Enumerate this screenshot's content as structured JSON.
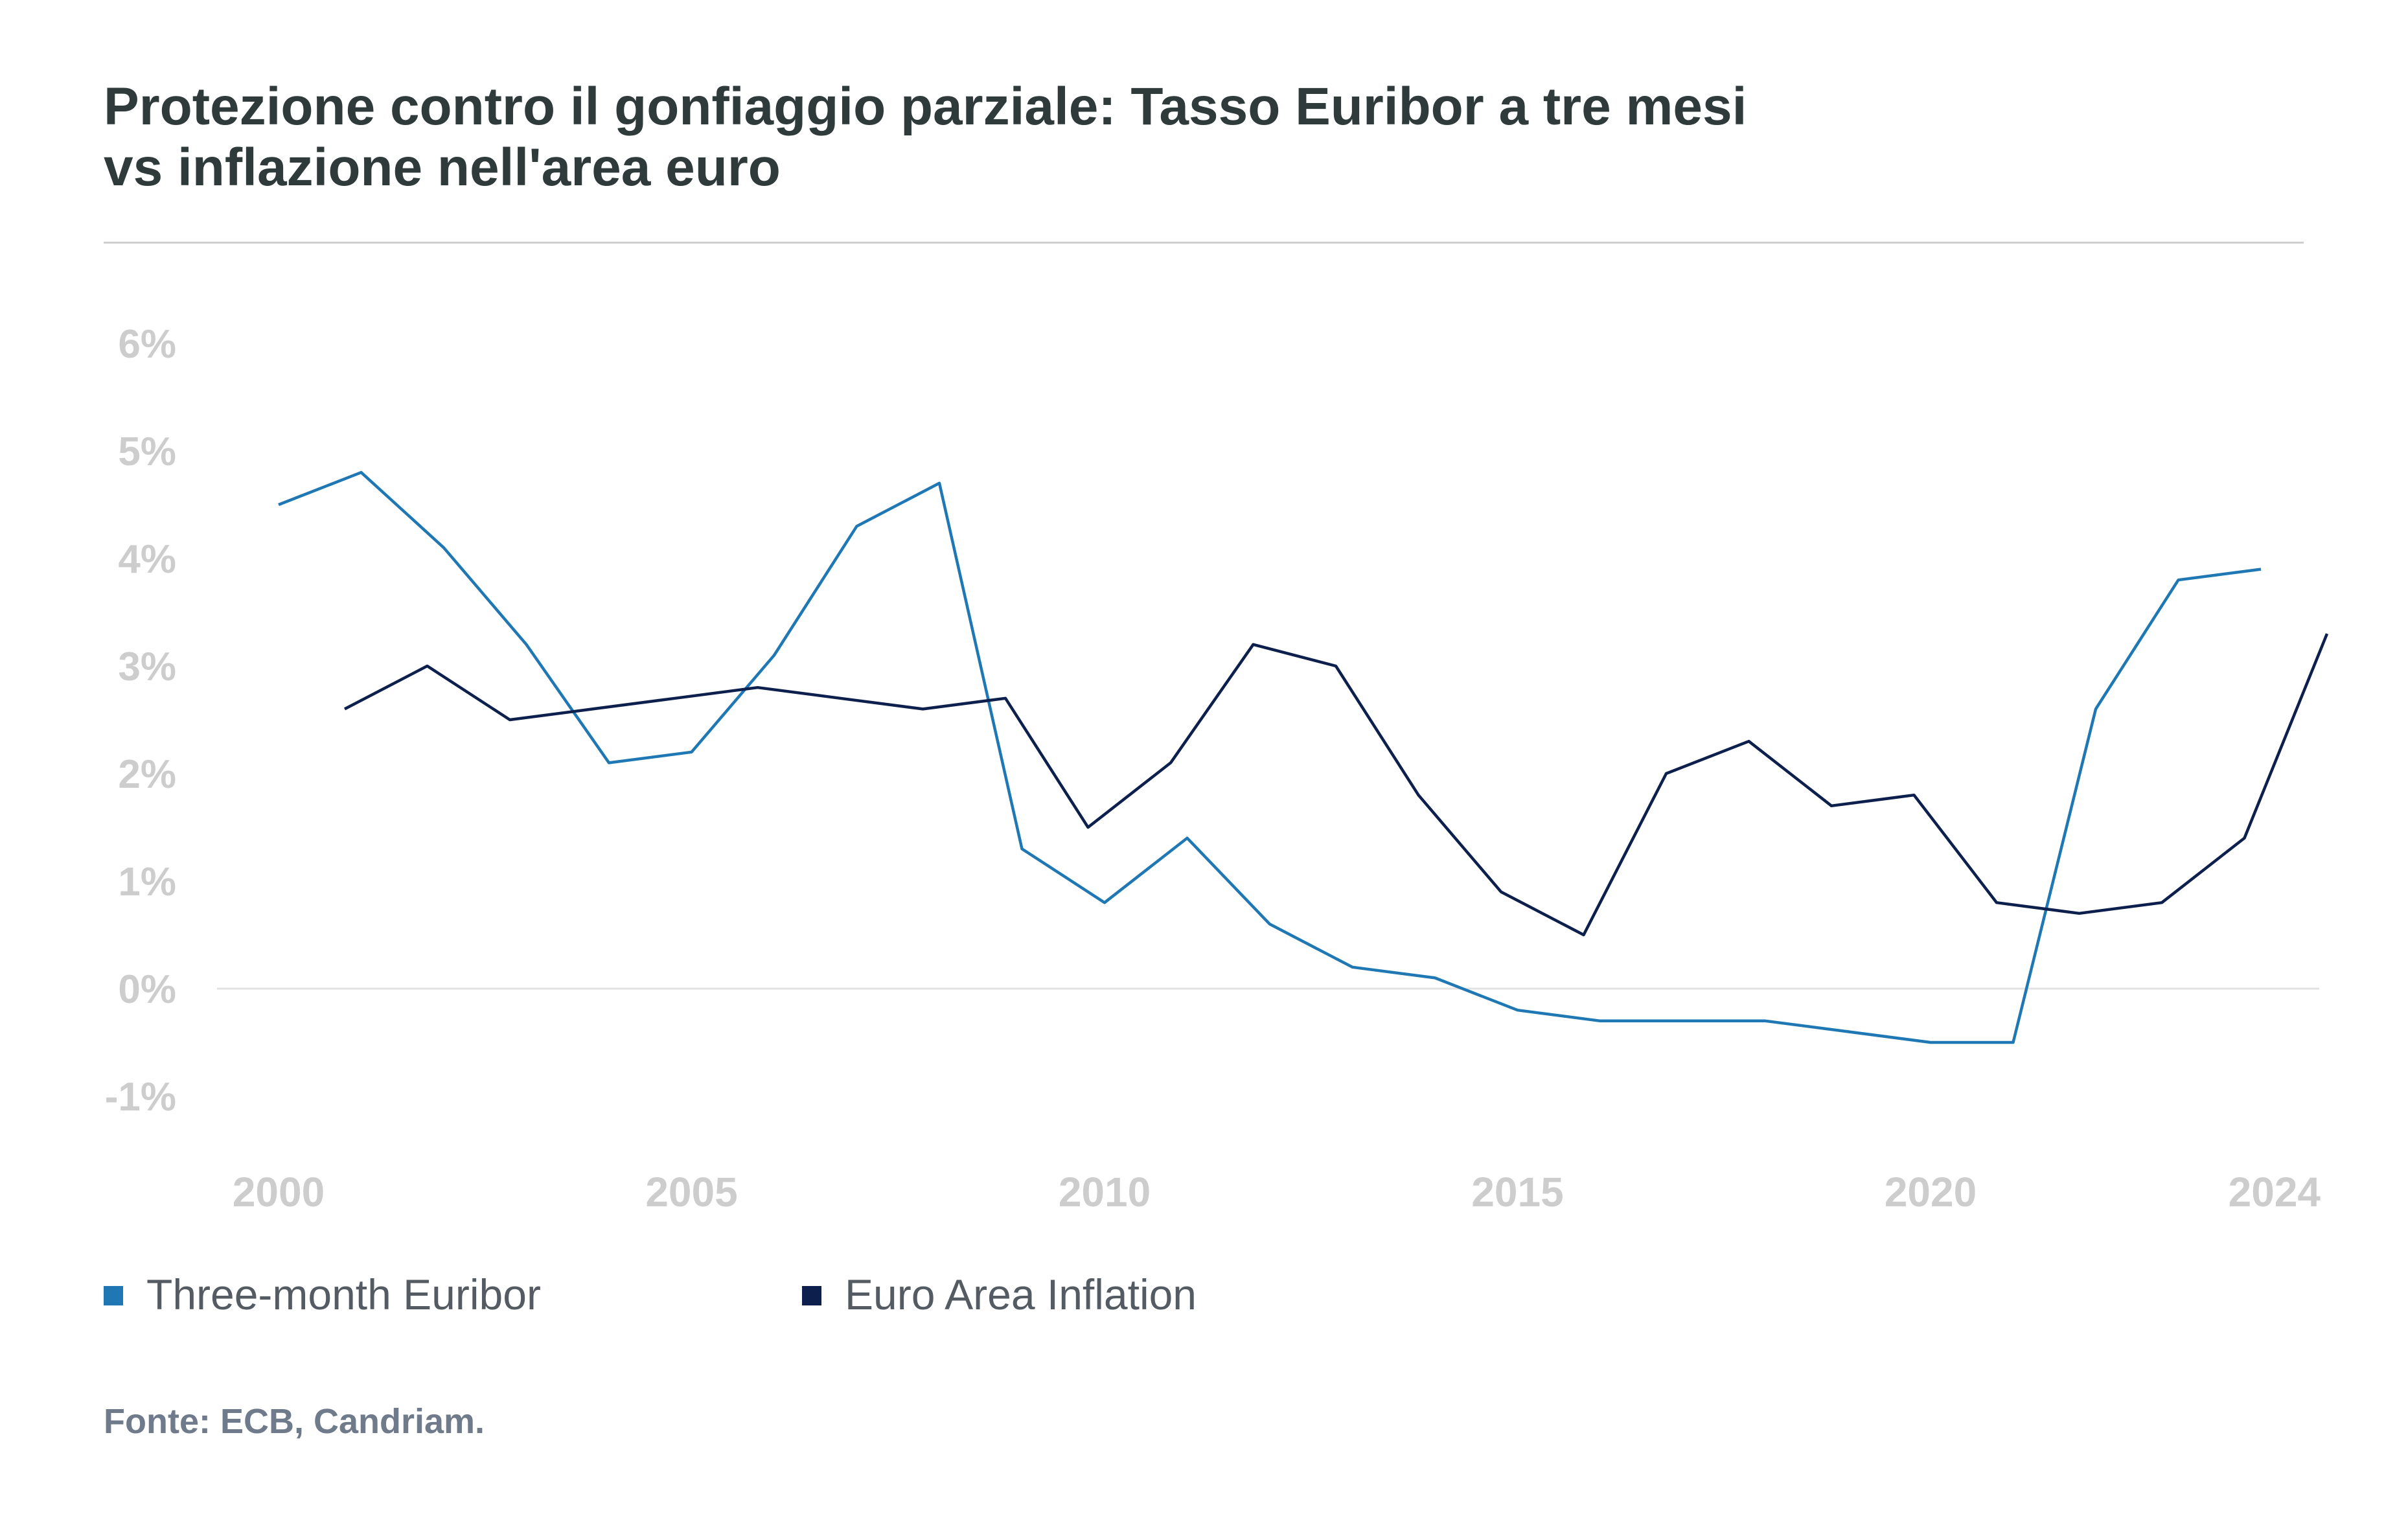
{
  "title_lines": [
    "Protezione contro il gonfiaggio parziale: Tasso Euribor a tre mesi",
    "vs inflazione nell'area euro"
  ],
  "source": "Fonte: ECB, Candriam.",
  "chart_data": {
    "type": "line",
    "title": "Protezione contro il gonfiaggio parziale: Tasso Euribor a tre mesi vs inflazione nell'area euro",
    "xlabel": "",
    "ylabel": "",
    "xlim": [
      2000,
      2024
    ],
    "ylim": [
      -1,
      6
    ],
    "x_ticks": [
      2000,
      2005,
      2010,
      2015,
      2020,
      2024
    ],
    "x_tick_labels": [
      "2000",
      "2005",
      "2010",
      "2015",
      "2020",
      "2024"
    ],
    "y_ticks": [
      -1,
      0,
      1,
      2,
      3,
      4,
      5,
      6
    ],
    "y_tick_labels": [
      "-1%",
      "0%",
      "1%",
      "2%",
      "3%",
      "4%",
      "5%",
      "6%"
    ],
    "grid": "zero line only",
    "legend_position": "bottom-left",
    "series": [
      {
        "name": "Three-month Euribor",
        "color": "#1f78b4",
        "x": [
          2000,
          2001,
          2002,
          2003,
          2004,
          2005,
          2006,
          2007,
          2008,
          2009,
          2010,
          2011,
          2012,
          2013,
          2014,
          2015,
          2016,
          2017,
          2018,
          2019,
          2020,
          2021,
          2022,
          2023,
          2024
        ],
        "y": [
          4.5,
          4.8,
          4.1,
          3.2,
          2.1,
          2.2,
          3.1,
          4.3,
          4.7,
          1.3,
          0.8,
          1.4,
          0.6,
          0.2,
          0.1,
          -0.2,
          -0.3,
          -0.3,
          -0.3,
          -0.4,
          -0.5,
          -0.5,
          2.6,
          3.8,
          3.9
        ]
      },
      {
        "name": "Euro Area Inflation",
        "color": "#0c1f4d",
        "x": [
          2000.8,
          2001.8,
          2002.8,
          2003.8,
          2004.8,
          2005.8,
          2006.8,
          2007.8,
          2008.8,
          2009.8,
          2010.8,
          2011.8,
          2012.8,
          2013.8,
          2014.8,
          2015.8,
          2016.8,
          2017.8,
          2018.8,
          2019.8,
          2020.8,
          2021.8,
          2022.8,
          2023.8,
          2024.8
        ],
        "y": [
          2.6,
          3.0,
          2.5,
          2.6,
          2.7,
          2.8,
          2.7,
          2.6,
          2.7,
          1.5,
          2.1,
          3.2,
          3.0,
          1.8,
          0.9,
          0.5,
          2.0,
          2.3,
          1.7,
          1.8,
          0.8,
          0.7,
          0.8,
          1.4,
          3.3
        ]
      }
    ]
  }
}
